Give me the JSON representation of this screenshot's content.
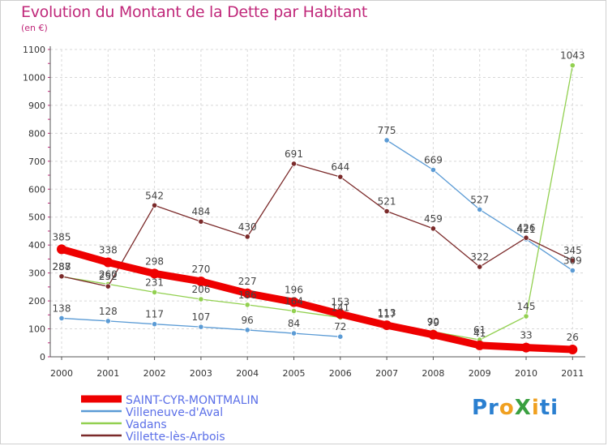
{
  "header": {
    "title": "Evolution du Montant de la Dette par Habitant",
    "subtitle": "(en €)"
  },
  "logo": {
    "text": "ProXiti",
    "colors": [
      "#2a7fd0",
      "#f0a020",
      "#3aa040"
    ]
  },
  "chart_data": {
    "type": "line",
    "title": "Evolution du Montant de la Dette par Habitant",
    "ylabel": "(en €)",
    "x": [
      "2000",
      "2001",
      "2002",
      "2003",
      "2004",
      "2005",
      "2006",
      "2007",
      "2008",
      "2009",
      "2010",
      "2011"
    ],
    "yticks": [
      0,
      100,
      200,
      300,
      400,
      500,
      600,
      700,
      800,
      900,
      1000,
      1100
    ],
    "ylim": [
      0,
      1100
    ],
    "grid": true,
    "legend": "bottom-left",
    "series": [
      {
        "name": "SAINT-CYR-MONTMALIN",
        "color": "#ee0000",
        "values": [
          385,
          338,
          298,
          270,
          227,
          196,
          153,
          113,
          79,
          41,
          33,
          26
        ],
        "labels": [
          "385",
          "338",
          "298",
          "270",
          "227",
          "196",
          "153",
          "113",
          "79",
          "41",
          "33",
          "26"
        ],
        "emphasis": true
      },
      {
        "name": "Villeneuve-d'Aval",
        "color": "#5b9bd5",
        "values": [
          138,
          128,
          117,
          107,
          96,
          84,
          72,
          775,
          669,
          527,
          421,
          309
        ],
        "labels": [
          "138",
          "128",
          "117",
          "107",
          "96",
          "84",
          "72",
          "775",
          "669",
          "527",
          "421",
          "309"
        ],
        "gap_after_index": 6
      },
      {
        "name": "Vadans",
        "color": "#92d050",
        "values": [
          287,
          260,
          231,
          206,
          186,
          164,
          141,
          117,
          90,
          61,
          145,
          1043
        ],
        "labels": [
          "287",
          "260",
          "231",
          "206",
          "186",
          "164",
          "141",
          "117",
          "90",
          "61",
          "145",
          "1043"
        ]
      },
      {
        "name": "Villette-lès-Arbois",
        "color": "#7b2a2a",
        "values": [
          288,
          252,
          542,
          484,
          430,
          691,
          644,
          521,
          459,
          322,
          426,
          345
        ],
        "labels": [
          "288",
          "252",
          "542",
          "484",
          "430",
          "691",
          "644",
          "521",
          "459",
          "322",
          "426",
          "345"
        ]
      }
    ]
  }
}
